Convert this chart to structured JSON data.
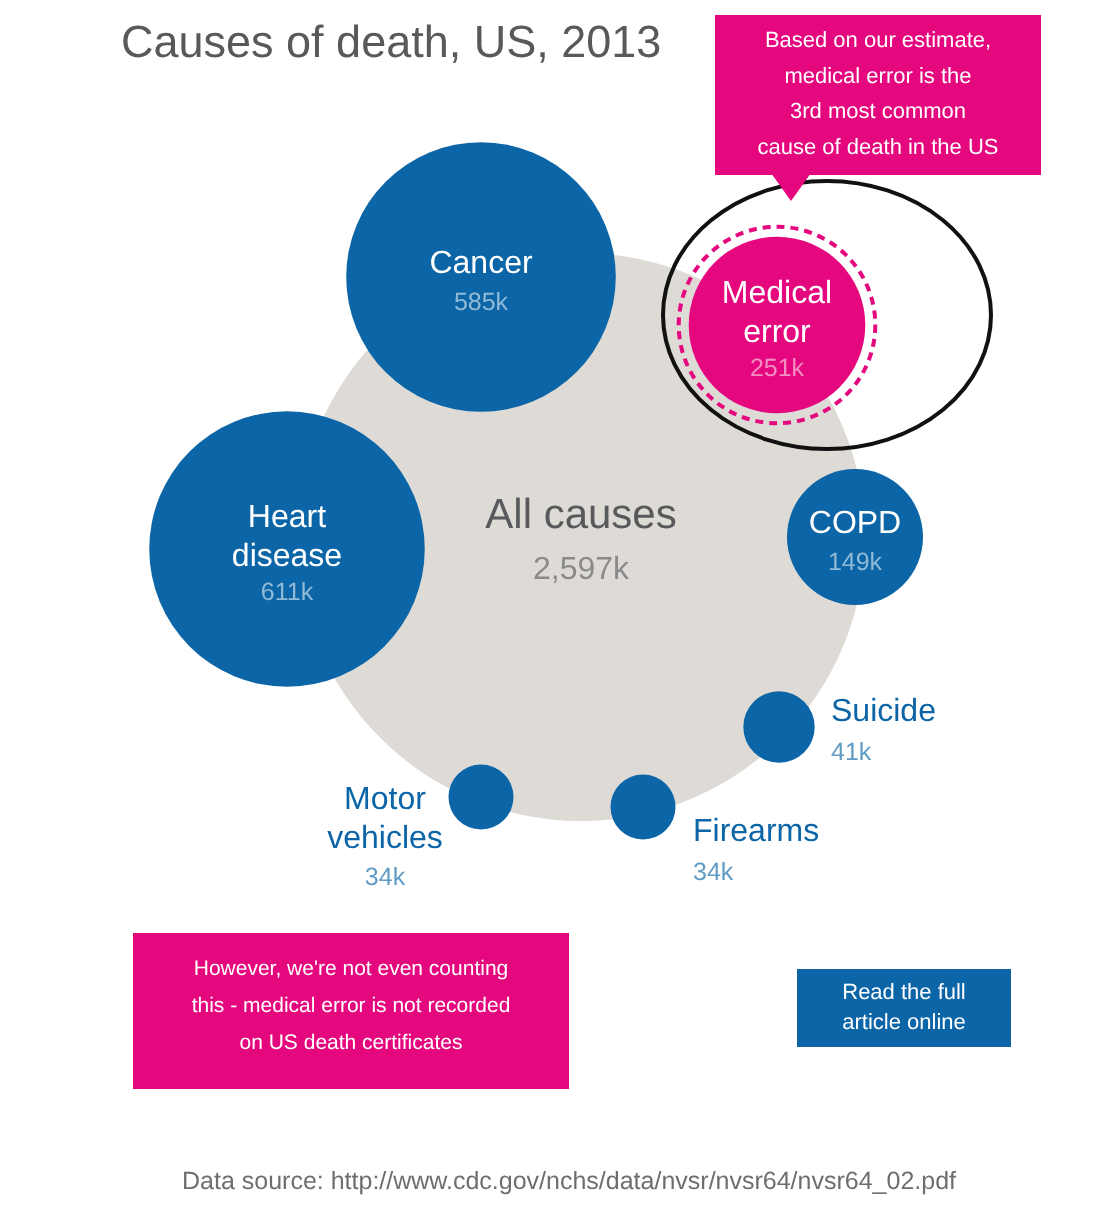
{
  "chart_data": {
    "type": "other",
    "title": "Causes of death, US, 2013",
    "categories": [
      "All causes",
      "Heart\ndisease",
      "Cancer",
      "Medical\nerror",
      "COPD",
      "Suicide",
      "Firearms",
      "Motor\nvehicles"
    ],
    "values": [
      2597,
      611,
      585,
      251,
      149,
      41,
      34,
      34
    ],
    "value_labels": [
      "2,597k",
      "611k",
      "585k",
      "251k",
      "149k",
      "41k",
      "34k",
      "34k"
    ],
    "colors": [
      "#dedbd7",
      "#0b65a6",
      "#0b65a6",
      "#e5077e",
      "#0b65a6",
      "#0b65a6",
      "#0b65a6",
      "#0b65a6"
    ],
    "annotations": [
      "Based on our estimate,\nmedical error is the\n3rd most common\ncause of death in the US",
      "However, we're not even counting\nthis - medical error is not recorded\non US death certificates",
      "Read the full\narticle online",
      "Data source: http://www.cdc.gov/nchs/data/nvsr/nvsr64/nvsr64_02.pdf"
    ]
  }
}
